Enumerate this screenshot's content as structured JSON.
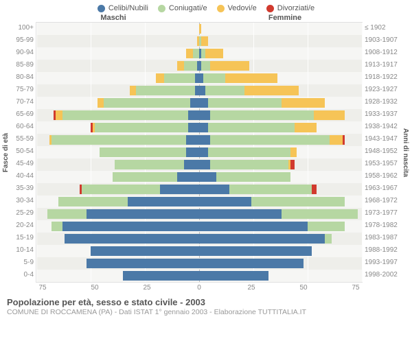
{
  "legend": [
    {
      "label": "Celibi/Nubili",
      "color": "#4b79a7"
    },
    {
      "label": "Coniugati/e",
      "color": "#b6d7a2"
    },
    {
      "label": "Vedovi/e",
      "color": "#f6c457"
    },
    {
      "label": "Divorziati/e",
      "color": "#d13a2e"
    }
  ],
  "headers": {
    "male": "Maschi",
    "female": "Femmine"
  },
  "axis_labels": {
    "left": "Fasce di età",
    "right": "Anni di nascita"
  },
  "age_brackets": [
    "100+",
    "95-99",
    "90-94",
    "85-89",
    "80-84",
    "75-79",
    "70-74",
    "65-69",
    "60-64",
    "55-59",
    "50-54",
    "45-49",
    "40-44",
    "35-39",
    "30-34",
    "25-29",
    "20-24",
    "15-19",
    "10-14",
    "5-9",
    "0-4"
  ],
  "birth_years": [
    "≤ 1902",
    "1903-1907",
    "1908-1912",
    "1913-1917",
    "1918-1922",
    "1923-1927",
    "1928-1932",
    "1933-1937",
    "1938-1942",
    "1943-1947",
    "1948-1952",
    "1953-1957",
    "1958-1962",
    "1963-1967",
    "1968-1972",
    "1973-1977",
    "1978-1982",
    "1983-1987",
    "1988-1992",
    "1993-1997",
    "1998-2002"
  ],
  "x_ticks": [
    75,
    50,
    25,
    0,
    25,
    50,
    75
  ],
  "x_max": 75,
  "chart": {
    "background": "#f6f6f4",
    "alt_row": "#eeeeea",
    "grid_color": "#ffffff"
  },
  "data": [
    {
      "m": {
        "c": 0,
        "co": 0,
        "v": 0,
        "d": 0
      },
      "f": {
        "c": 0,
        "co": 0,
        "v": 1,
        "d": 0
      }
    },
    {
      "m": {
        "c": 0,
        "co": 0,
        "v": 1,
        "d": 0
      },
      "f": {
        "c": 0,
        "co": 1,
        "v": 3,
        "d": 0
      }
    },
    {
      "m": {
        "c": 0,
        "co": 3,
        "v": 3,
        "d": 0
      },
      "f": {
        "c": 1,
        "co": 2,
        "v": 8,
        "d": 0
      }
    },
    {
      "m": {
        "c": 1,
        "co": 6,
        "v": 3,
        "d": 0
      },
      "f": {
        "c": 1,
        "co": 4,
        "v": 18,
        "d": 0
      }
    },
    {
      "m": {
        "c": 2,
        "co": 14,
        "v": 4,
        "d": 0
      },
      "f": {
        "c": 2,
        "co": 10,
        "v": 24,
        "d": 0
      }
    },
    {
      "m": {
        "c": 2,
        "co": 27,
        "v": 3,
        "d": 0
      },
      "f": {
        "c": 3,
        "co": 18,
        "v": 25,
        "d": 0
      }
    },
    {
      "m": {
        "c": 4,
        "co": 40,
        "v": 3,
        "d": 0
      },
      "f": {
        "c": 4,
        "co": 34,
        "v": 20,
        "d": 0
      }
    },
    {
      "m": {
        "c": 5,
        "co": 58,
        "v": 3,
        "d": 1
      },
      "f": {
        "c": 5,
        "co": 48,
        "v": 14,
        "d": 0
      }
    },
    {
      "m": {
        "c": 5,
        "co": 43,
        "v": 1,
        "d": 1
      },
      "f": {
        "c": 4,
        "co": 40,
        "v": 10,
        "d": 0
      }
    },
    {
      "m": {
        "c": 6,
        "co": 62,
        "v": 1,
        "d": 0
      },
      "f": {
        "c": 5,
        "co": 55,
        "v": 6,
        "d": 1
      }
    },
    {
      "m": {
        "c": 6,
        "co": 40,
        "v": 0,
        "d": 0
      },
      "f": {
        "c": 4,
        "co": 38,
        "v": 3,
        "d": 0
      }
    },
    {
      "m": {
        "c": 7,
        "co": 32,
        "v": 0,
        "d": 0
      },
      "f": {
        "c": 5,
        "co": 36,
        "v": 1,
        "d": 2
      }
    },
    {
      "m": {
        "c": 10,
        "co": 30,
        "v": 0,
        "d": 0
      },
      "f": {
        "c": 8,
        "co": 34,
        "v": 0,
        "d": 0
      }
    },
    {
      "m": {
        "c": 18,
        "co": 36,
        "v": 0,
        "d": 1
      },
      "f": {
        "c": 14,
        "co": 38,
        "v": 0,
        "d": 2
      }
    },
    {
      "m": {
        "c": 33,
        "co": 32,
        "v": 0,
        "d": 0
      },
      "f": {
        "c": 24,
        "co": 43,
        "v": 0,
        "d": 0
      }
    },
    {
      "m": {
        "c": 52,
        "co": 18,
        "v": 0,
        "d": 0
      },
      "f": {
        "c": 38,
        "co": 35,
        "v": 0,
        "d": 0
      }
    },
    {
      "m": {
        "c": 63,
        "co": 5,
        "v": 0,
        "d": 0
      },
      "f": {
        "c": 50,
        "co": 17,
        "v": 0,
        "d": 0
      }
    },
    {
      "m": {
        "c": 62,
        "co": 0,
        "v": 0,
        "d": 0
      },
      "f": {
        "c": 58,
        "co": 3,
        "v": 0,
        "d": 0
      }
    },
    {
      "m": {
        "c": 50,
        "co": 0,
        "v": 0,
        "d": 0
      },
      "f": {
        "c": 52,
        "co": 0,
        "v": 0,
        "d": 0
      }
    },
    {
      "m": {
        "c": 52,
        "co": 0,
        "v": 0,
        "d": 0
      },
      "f": {
        "c": 48,
        "co": 0,
        "v": 0,
        "d": 0
      }
    },
    {
      "m": {
        "c": 35,
        "co": 0,
        "v": 0,
        "d": 0
      },
      "f": {
        "c": 32,
        "co": 0,
        "v": 0,
        "d": 0
      }
    }
  ],
  "title": "Popolazione per età, sesso e stato civile - 2003",
  "subtitle": "COMUNE DI ROCCAMENA (PA) - Dati ISTAT 1° gennaio 2003 - Elaborazione TUTTITALIA.IT"
}
